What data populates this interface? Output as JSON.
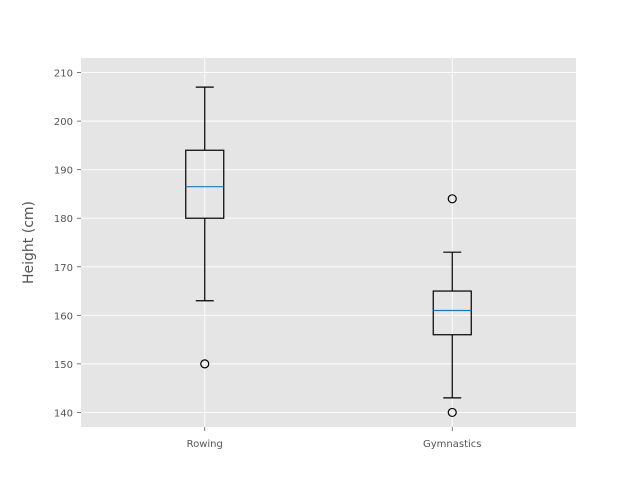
{
  "chart_data": {
    "type": "box",
    "title": "",
    "xlabel": "",
    "ylabel": "Height (cm)",
    "ylim": [
      137,
      213
    ],
    "yticks": [
      140,
      150,
      160,
      170,
      180,
      190,
      200,
      210
    ],
    "grid": true,
    "colors": {
      "background": "#e5e5e5",
      "grid": "#ffffff",
      "box": "#000000",
      "median": "#1f77b4",
      "text": "#555555"
    },
    "categories": [
      "Rowing",
      "Gymnastics"
    ],
    "boxes": [
      {
        "category": "Rowing",
        "whisker_low": 163,
        "q1": 180,
        "median": 186.5,
        "q3": 194,
        "whisker_high": 207,
        "outliers": [
          150
        ]
      },
      {
        "category": "Gymnastics",
        "whisker_low": 143,
        "q1": 156,
        "median": 161,
        "q3": 165,
        "whisker_high": 173,
        "outliers": [
          184,
          140
        ]
      }
    ]
  }
}
